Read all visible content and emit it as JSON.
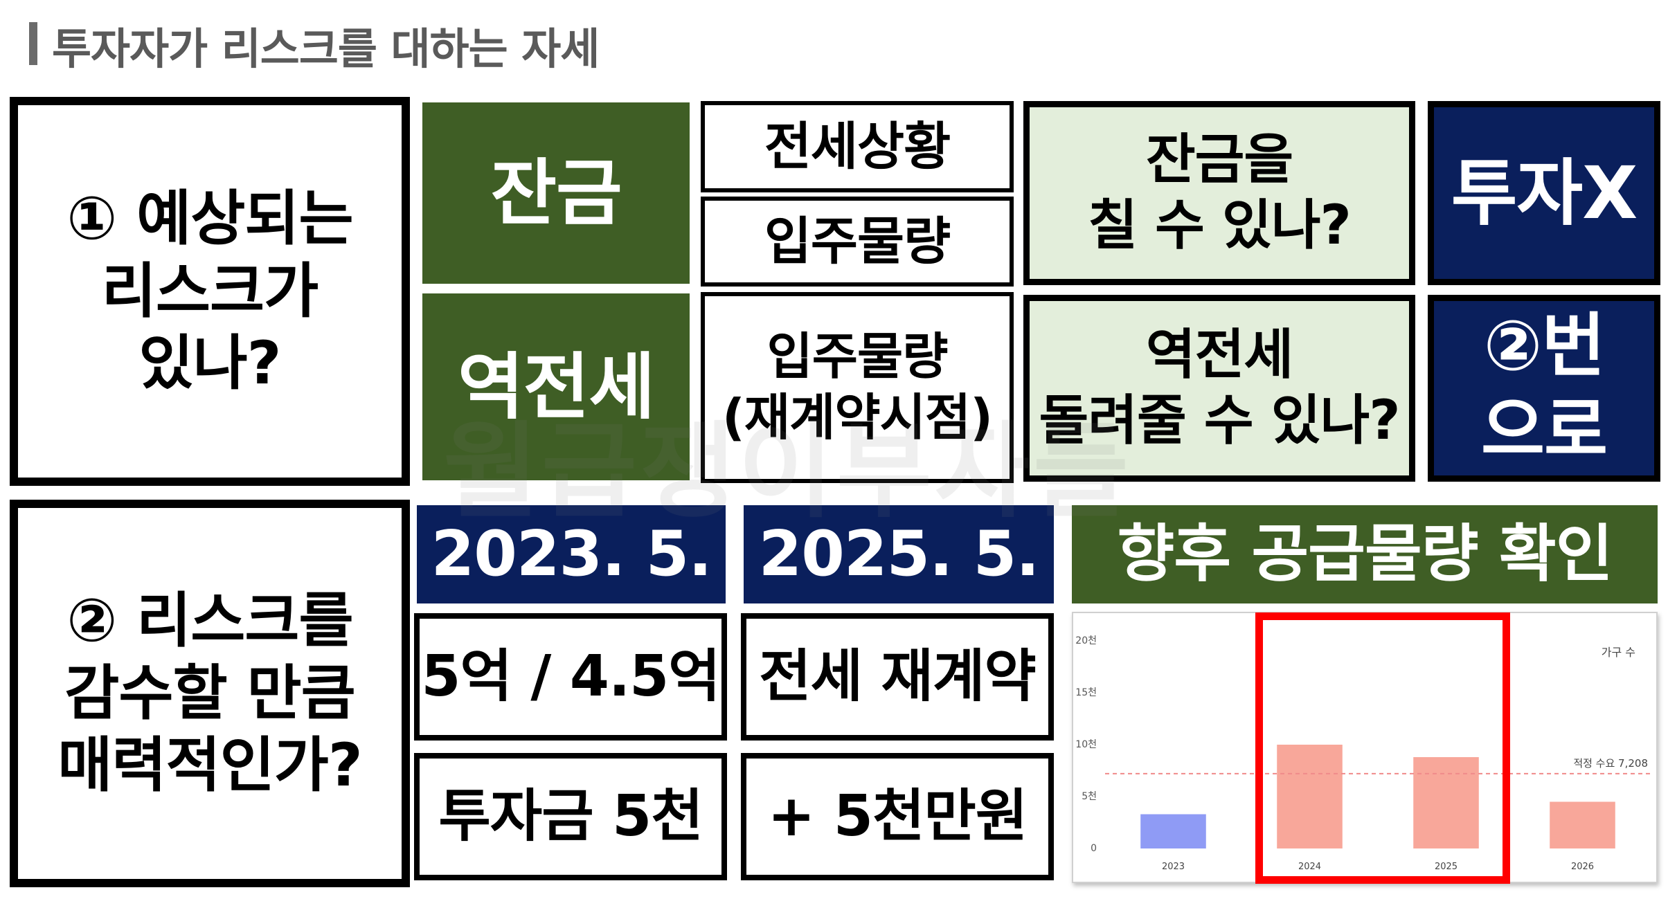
{
  "title": "투자자가 리스크를 대하는 자세",
  "left": {
    "q1": "① 예상되는\n리스크가\n있나?",
    "q2": "② 리스크를\n감수할 만큼\n매력적인가?"
  },
  "rows": {
    "balance": {
      "label": "잔금",
      "checks": [
        "전세상황",
        "입주물량"
      ],
      "question": "잔금을\n칠 수 있나?",
      "result": "투자X"
    },
    "reverse_jeonse": {
      "label": "역전세",
      "check": "입주물량\n(재계약시점)",
      "question": "역전세\n돌려줄 수 있나?",
      "result": "②번\n으로"
    }
  },
  "timeline": {
    "col1": {
      "date": "2023. 5.",
      "price": "5억 / 4.5억",
      "invest": "투자금 5천"
    },
    "col2": {
      "date": "2025. 5.",
      "contract": "전세 재계약",
      "plus": "+ 5천만원"
    }
  },
  "supply_header": "향후 공급물량 확인",
  "chart_data": {
    "type": "bar",
    "categories": [
      "2023",
      "2024",
      "2025",
      "2026"
    ],
    "values": [
      3300,
      10000,
      8800,
      4500
    ],
    "colors": [
      "#8f9bf5",
      "#f8a79a",
      "#f8a79a",
      "#f8a79a"
    ],
    "ylim": [
      0,
      20000
    ],
    "yticks": [
      "0",
      "5천",
      "10천",
      "15천",
      "20천"
    ],
    "legend": "가구 수",
    "reference": {
      "value": 7208,
      "label": "적정 수요 7,208"
    }
  },
  "watermark": "월급쟁이부자들"
}
